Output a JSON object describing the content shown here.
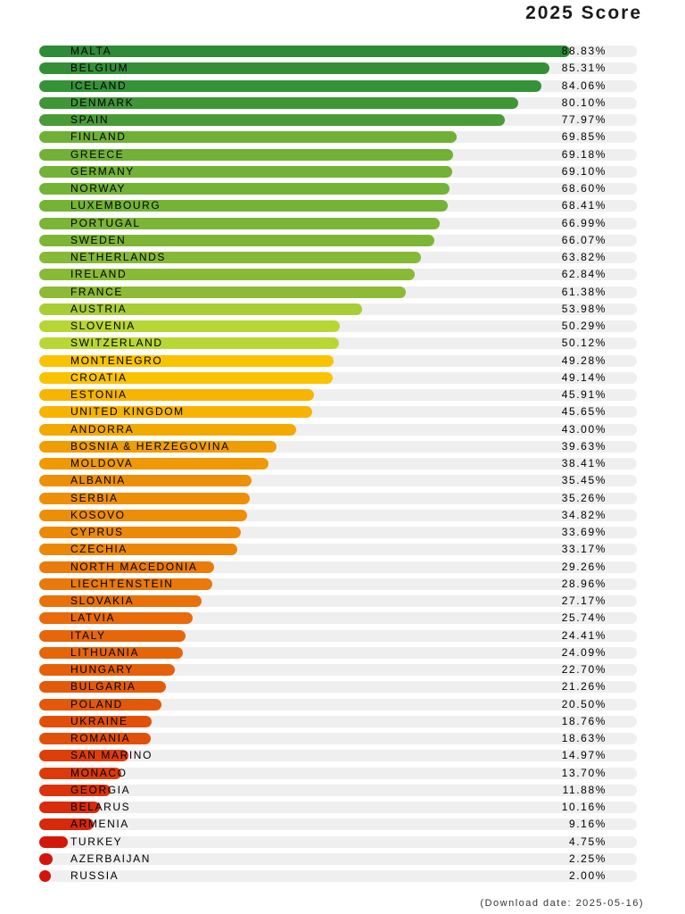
{
  "chart_data": {
    "type": "bar",
    "orientation": "horizontal",
    "title": "2025 Score",
    "unit": "%",
    "xlim": [
      0,
      100
    ],
    "categories": [
      "MALTA",
      "BELGIUM",
      "ICELAND",
      "DENMARK",
      "SPAIN",
      "FINLAND",
      "GREECE",
      "GERMANY",
      "NORWAY",
      "LUXEMBOURG",
      "PORTUGAL",
      "SWEDEN",
      "NETHERLANDS",
      "IRELAND",
      "FRANCE",
      "AUSTRIA",
      "SLOVENIA",
      "SWITZERLAND",
      "MONTENEGRO",
      "CROATIA",
      "ESTONIA",
      "UNITED KINGDOM",
      "ANDORRA",
      "BOSNIA & HERZEGOVINA",
      "MOLDOVA",
      "ALBANIA",
      "SERBIA",
      "KOSOVO",
      "CYPRUS",
      "CZECHIA",
      "NORTH MACEDONIA",
      "LIECHTENSTEIN",
      "SLOVAKIA",
      "LATVIA",
      "ITALY",
      "LITHUANIA",
      "HUNGARY",
      "BULGARIA",
      "POLAND",
      "UKRAINE",
      "ROMANIA",
      "SAN MARINO",
      "MONACO",
      "GEORGIA",
      "BELARUS",
      "ARMENIA",
      "TURKEY",
      "AZERBAIJAN",
      "RUSSIA"
    ],
    "values": [
      88.83,
      85.31,
      84.06,
      80.1,
      77.97,
      69.85,
      69.18,
      69.1,
      68.6,
      68.41,
      66.99,
      66.07,
      63.82,
      62.84,
      61.38,
      53.98,
      50.29,
      50.12,
      49.28,
      49.14,
      45.91,
      45.65,
      43.0,
      39.63,
      38.41,
      35.45,
      35.26,
      34.82,
      33.69,
      33.17,
      29.26,
      28.96,
      27.17,
      25.74,
      24.41,
      24.09,
      22.7,
      21.26,
      20.5,
      18.76,
      18.63,
      14.97,
      13.7,
      11.88,
      10.16,
      9.16,
      4.75,
      2.25,
      2.0
    ],
    "value_labels": [
      "88.83%",
      "85.31%",
      "84.06%",
      "80.10%",
      "77.97%",
      "69.85%",
      "69.18%",
      "69.10%",
      "68.60%",
      "68.41%",
      "66.99%",
      "66.07%",
      "63.82%",
      "62.84%",
      "61.38%",
      "53.98%",
      "50.29%",
      "50.12%",
      "49.28%",
      "49.14%",
      "45.91%",
      "45.65%",
      "43.00%",
      "39.63%",
      "38.41%",
      "35.45%",
      "35.26%",
      "34.82%",
      "33.69%",
      "33.17%",
      "29.26%",
      "28.96%",
      "27.17%",
      "25.74%",
      "24.41%",
      "24.09%",
      "22.70%",
      "21.26%",
      "20.50%",
      "18.76%",
      "18.63%",
      "14.97%",
      "13.70%",
      "11.88%",
      "10.16%",
      "9.16%",
      "4.75%",
      "2.25%",
      "2.00%"
    ],
    "colors": [
      "#2e8b37",
      "#338f37",
      "#359237",
      "#3f9637",
      "#4a9a37",
      "#6fb036",
      "#71b136",
      "#72b236",
      "#73b336",
      "#74b336",
      "#7ab535",
      "#7db635",
      "#86b935",
      "#89ba35",
      "#8dbb35",
      "#a9cd35",
      "#b8d633",
      "#b9d733",
      "#f9c300",
      "#f9c300",
      "#f6b500",
      "#f6b400",
      "#f2a900",
      "#f09d04",
      "#ef9906",
      "#ee8f08",
      "#ee8f08",
      "#ed8e08",
      "#ec8a08",
      "#ec8808",
      "#ea7a09",
      "#e97909",
      "#e87209",
      "#e76b09",
      "#e6660a",
      "#e6650a",
      "#e4610a",
      "#e35b0a",
      "#e3580a",
      "#e1500a",
      "#e1500a",
      "#dd3f0a",
      "#dc3a0a",
      "#da330b",
      "#d82c0b",
      "#d7290b",
      "#d3180b",
      "#d3150b",
      "#d2140b"
    ],
    "track_color": "#efefef"
  },
  "footnote": "(Download date: 2025-05-16)"
}
